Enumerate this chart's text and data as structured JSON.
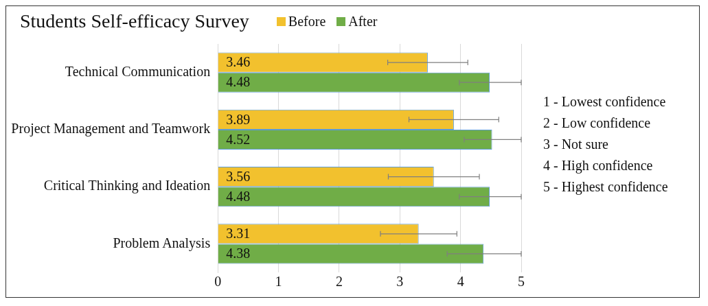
{
  "chart_data": {
    "type": "bar",
    "orientation": "horizontal",
    "title": "Students Self-efficacy Survey",
    "categories": [
      "Technical Communication",
      "Project Management and Teamwork",
      "Critical Thinking and Ideation",
      "Problem Analysis"
    ],
    "series": [
      {
        "name": "Before",
        "color": "#f2c12e",
        "values": [
          3.46,
          3.89,
          3.56,
          3.31
        ],
        "errors": [
          0.66,
          0.74,
          0.75,
          0.63
        ]
      },
      {
        "name": "After",
        "color": "#70ad47",
        "values": [
          4.48,
          4.52,
          4.48,
          4.38
        ],
        "errors": [
          [
            3.98,
            5
          ],
          [
            4.06,
            5
          ],
          [
            3.98,
            5
          ],
          [
            3.78,
            5
          ]
        ]
      }
    ],
    "xlim": [
      0,
      5
    ],
    "xticks": [
      0,
      1,
      2,
      3,
      4,
      5
    ],
    "grid": "x",
    "legend": "top",
    "data_labels": true,
    "annotations": [
      "1 - Lowest confidence",
      "2 - Low confidence",
      "3 - Not sure",
      "4 - High confidence",
      "5 - Highest confidence"
    ]
  }
}
